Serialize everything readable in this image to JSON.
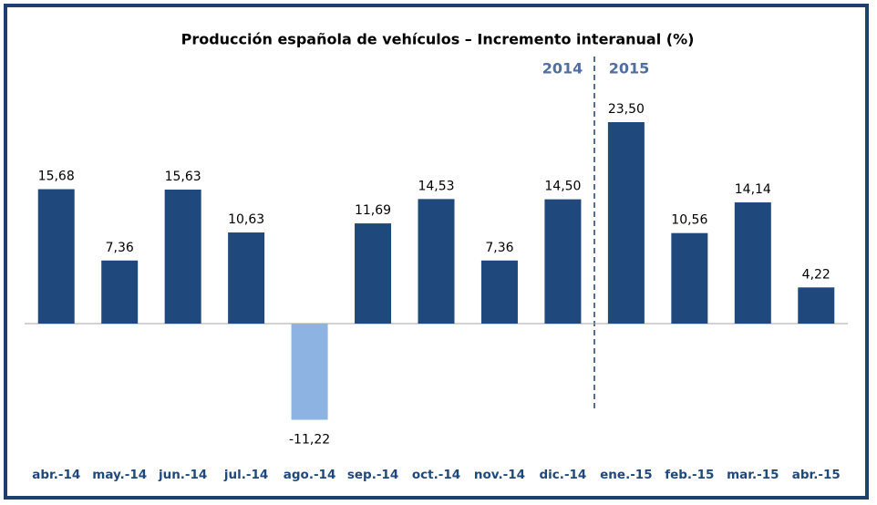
{
  "chart_data": {
    "type": "bar",
    "title": "Producción española de vehículos – Incremento interanual (%)",
    "annotations": [
      "2014",
      "2015"
    ],
    "categories": [
      "abr.-14",
      "may.-14",
      "jun.-14",
      "jul.-14",
      "ago.-14",
      "sep.-14",
      "oct.-14",
      "nov.-14",
      "dic.-14",
      "ene.-15",
      "feb.-15",
      "mar.-15",
      "abr.-15"
    ],
    "values": [
      15.68,
      7.36,
      15.63,
      10.63,
      -11.22,
      11.69,
      14.53,
      7.36,
      14.5,
      23.5,
      10.56,
      14.14,
      4.22
    ],
    "value_labels": [
      "15,68",
      "7,36",
      "15,63",
      "10,63",
      "-11,22",
      "11,69",
      "14,53",
      "7,36",
      "14,50",
      "23,50",
      "10,56",
      "14,14",
      "4,22"
    ],
    "colors": [
      "#1f497d",
      "#1f497d",
      "#1f497d",
      "#1f497d",
      "#8db3e2",
      "#1f497d",
      "#1f497d",
      "#1f497d",
      "#1f497d",
      "#1f497d",
      "#1f497d",
      "#1f497d",
      "#1f497d"
    ]
  }
}
